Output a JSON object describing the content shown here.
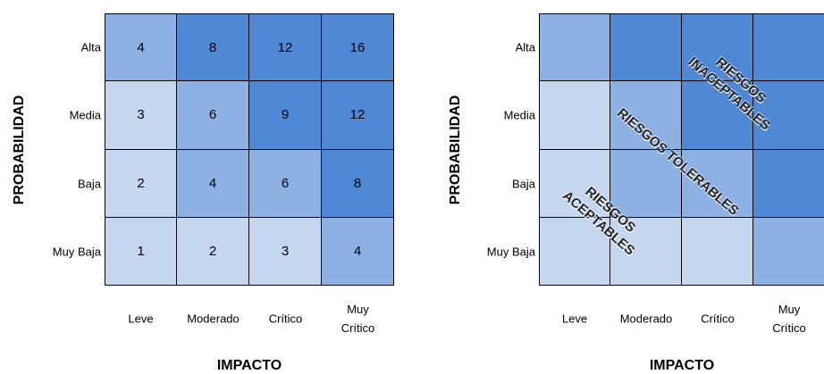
{
  "matrices": [
    {
      "y_label": "PROBABILIDAD",
      "x_label": "IMPACTO",
      "rows": [
        "Alta",
        "Media",
        "Baja",
        "Muy Baja"
      ],
      "columns": [
        "Leve",
        "Moderado",
        "Crítico",
        "Muy Crítico"
      ],
      "cells": [
        [
          {
            "value": 4,
            "color": "#8eb1e3"
          },
          {
            "value": 8,
            "color": "#4f88d5"
          },
          {
            "value": 12,
            "color": "#4f88d5"
          },
          {
            "value": 16,
            "color": "#4f88d5"
          }
        ],
        [
          {
            "value": 3,
            "color": "#c5d6ef"
          },
          {
            "value": 6,
            "color": "#8eb1e3"
          },
          {
            "value": 9,
            "color": "#4f88d5"
          },
          {
            "value": 12,
            "color": "#4f88d5"
          }
        ],
        [
          {
            "value": 2,
            "color": "#c5d6ef"
          },
          {
            "value": 4,
            "color": "#8eb1e3"
          },
          {
            "value": 6,
            "color": "#8eb1e3"
          },
          {
            "value": 8,
            "color": "#4f88d5"
          }
        ],
        [
          {
            "value": 1,
            "color": "#c5d6ef"
          },
          {
            "value": 2,
            "color": "#c5d6ef"
          },
          {
            "value": 3,
            "color": "#c5d6ef"
          },
          {
            "value": 4,
            "color": "#8eb1e3"
          }
        ]
      ]
    },
    {
      "y_label": "PROBABILIDAD",
      "x_label": "IMPACTO",
      "rows": [
        "Alta",
        "Media",
        "Baja",
        "Muy Baja"
      ],
      "columns": [
        "Leve",
        "Moderado",
        "Crítico",
        "Muy Crítico"
      ],
      "cell_colors": [
        [
          "#8eb1e3",
          "#4f88d5",
          "#4f88d5",
          "#4f88d5"
        ],
        [
          "#c5d6ef",
          "#8eb1e3",
          "#4f88d5",
          "#4f88d5"
        ],
        [
          "#c5d6ef",
          "#8eb1e3",
          "#8eb1e3",
          "#4f88d5"
        ],
        [
          "#c5d6ef",
          "#c5d6ef",
          "#c5d6ef",
          "#8eb1e3"
        ]
      ],
      "zones": [
        "RIESGOS INACEPTABLES",
        "RIESGOS TOLERABLES",
        "RIESGOS ACEPTABLES"
      ]
    }
  ]
}
